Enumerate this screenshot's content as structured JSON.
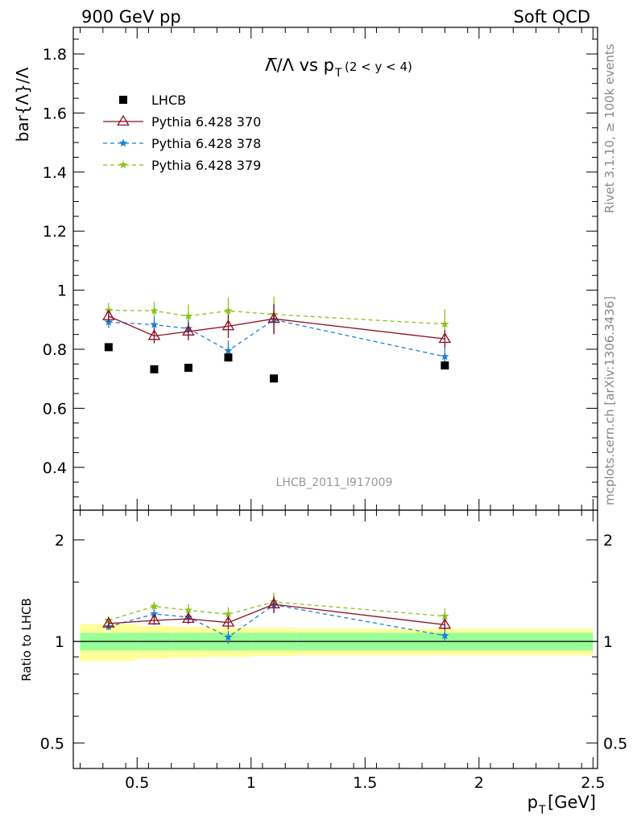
{
  "header": {
    "left": "900 GeV pp",
    "right": "Soft QCD"
  },
  "side_labels": {
    "upper": "Rivet 3.1.10, ≥ 100k events",
    "lower": "mcplots.cern.ch [arXiv:1306.3436]"
  },
  "chart_data": {
    "type": "scatter",
    "title_main": "Λ̅/Λ vs p",
    "title_sub": "T",
    "title_range": "(2 < y < 4)",
    "ylabel": "bar{Λ}/Λ",
    "ratio_ylabel": "Ratio to LHCB",
    "xlabel_main": "p",
    "xlabel_sub": "T",
    "xlabel_unit": "[GeV]",
    "watermark": "LHCB_2011_I917009",
    "xlim": [
      0.22,
      2.52
    ],
    "ylim": [
      0.255,
      1.89
    ],
    "ratio_ylim": [
      0.42,
      2.45
    ],
    "ratio_log": true,
    "x_ticks": [
      0.5,
      1,
      1.5,
      2,
      2.5
    ],
    "x_tick_labels": [
      "0.5",
      "1",
      "1.5",
      "2",
      "2.5"
    ],
    "y_ticks": [
      0.4,
      0.6,
      0.8,
      1.0,
      1.2,
      1.4,
      1.6,
      1.8
    ],
    "y_tick_labels": [
      "0.4",
      "0.6",
      "0.8",
      "1",
      "1.2",
      "1.4",
      "1.6",
      "1.8"
    ],
    "ratio_ticks": [
      0.5,
      1,
      2
    ],
    "ratio_tick_labels": [
      "0.5",
      "1",
      "2"
    ],
    "x_bins": [
      0.25,
      0.5,
      0.65,
      0.8,
      1.0,
      1.2,
      2.5
    ],
    "legend_position": "top-left",
    "series": [
      {
        "name": "LHCB",
        "style": "data",
        "color": "#000000",
        "x": [
          0.375,
          0.575,
          0.725,
          0.9,
          1.1,
          1.85
        ],
        "y": [
          0.807,
          0.732,
          0.737,
          0.772,
          0.701,
          0.745
        ],
        "band_inner": [
          0.06,
          0.06,
          0.06,
          0.06,
          0.06,
          0.06
        ],
        "band_outer": [
          0.125,
          0.11,
          0.105,
          0.1,
          0.095,
          0.09
        ]
      },
      {
        "name": "Pythia 6.428 370",
        "style": "solid",
        "marker": "triangle",
        "color": "#8b0d24",
        "x": [
          0.375,
          0.575,
          0.725,
          0.9,
          1.1,
          1.85
        ],
        "y": [
          0.912,
          0.845,
          0.86,
          0.878,
          0.903,
          0.835
        ],
        "err": [
          0.02,
          0.025,
          0.03,
          0.04,
          0.05,
          0.03
        ]
      },
      {
        "name": "Pythia 6.428 378",
        "style": "dashed",
        "marker": "star",
        "color": "#1e7fd6",
        "x": [
          0.375,
          0.575,
          0.725,
          0.9,
          1.1,
          1.85
        ],
        "y": [
          0.892,
          0.883,
          0.87,
          0.795,
          0.9,
          0.775
        ],
        "err": [
          0.02,
          0.025,
          0.03,
          0.035,
          0.05,
          0.03
        ]
      },
      {
        "name": "Pythia 6.428 379",
        "style": "dashed",
        "marker": "star",
        "color": "#8cc21e",
        "x": [
          0.375,
          0.575,
          0.725,
          0.9,
          1.1,
          1.85
        ],
        "y": [
          0.932,
          0.93,
          0.912,
          0.93,
          0.918,
          0.885
        ],
        "err": [
          0.025,
          0.03,
          0.04,
          0.045,
          0.06,
          0.05
        ]
      }
    ]
  }
}
